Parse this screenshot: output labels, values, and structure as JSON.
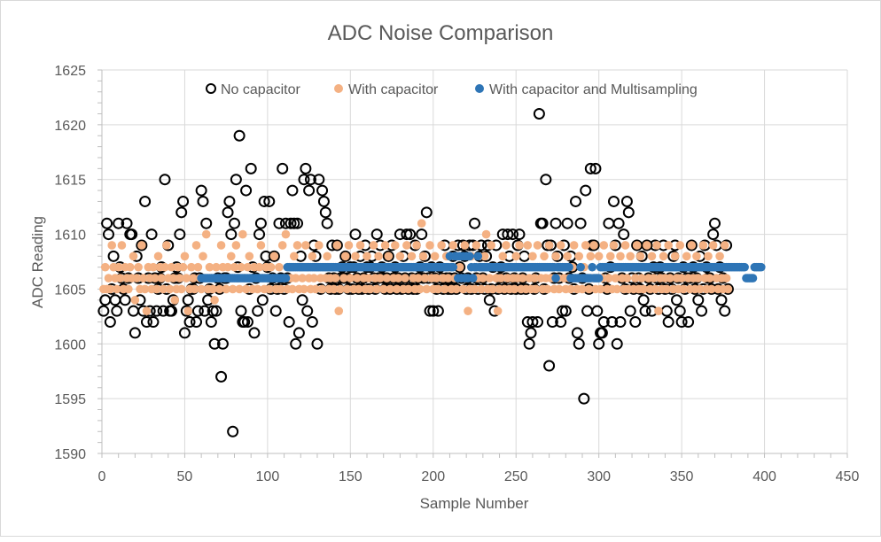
{
  "chart_data": {
    "type": "scatter",
    "title": "ADC Noise Comparison",
    "xlabel": "Sample Number",
    "ylabel": "ADC Reading",
    "xlim": [
      0,
      450
    ],
    "ylim": [
      1590,
      1625
    ],
    "x_ticks": [
      0,
      50,
      100,
      150,
      200,
      250,
      300,
      350,
      400,
      450
    ],
    "y_ticks": [
      1590,
      1595,
      1600,
      1605,
      1610,
      1615,
      1620,
      1625
    ],
    "grid": true,
    "legend_position": "top",
    "series": [
      {
        "name": "No capacitor",
        "marker": "open-circle",
        "color": "#000000",
        "x_start": 1,
        "y": [
          1603,
          1604,
          1611,
          1610,
          1602,
          1605,
          1608,
          1604,
          1603,
          1611,
          1607,
          1606,
          1605,
          1604,
          1611,
          1606,
          1610,
          1610,
          1603,
          1601,
          1608,
          1606,
          1604,
          1609,
          1603,
          1613,
          1602,
          1606,
          1603,
          1610,
          1602,
          1606,
          1603,
          1605,
          1606,
          1607,
          1603,
          1615,
          1605,
          1609,
          1603,
          1603,
          1604,
          1606,
          1607,
          1606,
          1610,
          1612,
          1613,
          1601,
          1603,
          1604,
          1602,
          1605,
          1605,
          1606,
          1602,
          1603,
          1606,
          1614,
          1613,
          1603,
          1611,
          1604,
          1605,
          1602,
          1603,
          1600,
          1603,
          1606,
          1605,
          1597,
          1600,
          1606,
          1606,
          1612,
          1613,
          1610,
          1592,
          1611,
          1615,
          1607,
          1619,
          1603,
          1602,
          1602,
          1614,
          1602,
          1605,
          1616,
          1607,
          1601,
          1606,
          1603,
          1610,
          1611,
          1604,
          1613,
          1608,
          1607,
          1613,
          1605,
          1606,
          1608,
          1603,
          1605,
          1611,
          1606,
          1616,
          1605,
          1611,
          1606,
          1602,
          1611,
          1614,
          1611,
          1600,
          1611,
          1601,
          1608,
          1604,
          1615,
          1616,
          1603,
          1614,
          1615,
          1602,
          1609,
          1608,
          1600,
          1615,
          1605,
          1614,
          1613,
          1612,
          1611,
          1606,
          1605,
          1609,
          1606,
          1605,
          1609,
          1605,
          1606,
          1607,
          1606,
          1608,
          1606,
          1605,
          1607,
          1605,
          1607,
          1610,
          1606,
          1605,
          1608,
          1605,
          1606,
          1609,
          1607,
          1605,
          1607,
          1608,
          1606,
          1605,
          1610,
          1606,
          1609,
          1607,
          1606,
          1605,
          1606,
          1608,
          1605,
          1609,
          1606,
          1607,
          1605,
          1606,
          1610,
          1605,
          1608,
          1606,
          1610,
          1605,
          1610,
          1606,
          1605,
          1609,
          1605,
          1606,
          1607,
          1610,
          1606,
          1608,
          1612,
          1606,
          1603,
          1607,
          1603,
          1606,
          1605,
          1603,
          1607,
          1606,
          1605,
          1609,
          1606,
          1605,
          1606,
          1605,
          1608,
          1606,
          1605,
          1609,
          1607,
          1606,
          1609,
          1608,
          1605,
          1606,
          1609,
          1605,
          1609,
          1611,
          1606,
          1605,
          1608,
          1609,
          1606,
          1605,
          1608,
          1609,
          1604,
          1605,
          1607,
          1603,
          1609,
          1605,
          1606,
          1607,
          1610,
          1605,
          1606,
          1610,
          1608,
          1605,
          1610,
          1606,
          1605,
          1609,
          1610,
          1605,
          1606,
          1608,
          1605,
          1602,
          1600,
          1601,
          1602,
          1605,
          1606,
          1602,
          1621,
          1611,
          1611,
          1605,
          1615,
          1609,
          1598,
          1609,
          1602,
          1606,
          1611,
          1608,
          1606,
          1602,
          1603,
          1609,
          1603,
          1611,
          1606,
          1608,
          1607,
          1605,
          1613,
          1601,
          1600,
          1611,
          1606,
          1595,
          1614,
          1603,
          1605,
          1616,
          1609,
          1609,
          1616,
          1603,
          1600,
          1601,
          1601,
          1602,
          1606,
          1605,
          1611,
          1607,
          1602,
          1613,
          1609,
          1600,
          1611,
          1602,
          1606,
          1610,
          1605,
          1613,
          1612,
          1603,
          1606,
          1605,
          1602,
          1609,
          1606,
          1605,
          1608,
          1604,
          1603,
          1609,
          1606,
          1605,
          1603,
          1607,
          1609,
          1606,
          1605,
          1607,
          1606,
          1609,
          1605,
          1603,
          1602,
          1606,
          1605,
          1608,
          1609,
          1604,
          1606,
          1603,
          1602,
          1607,
          1605,
          1606,
          1602,
          1606,
          1609,
          1607,
          1605,
          1606,
          1604,
          1608,
          1603,
          1605,
          1609,
          1607,
          1606,
          1606,
          1605,
          1610,
          1611,
          1609,
          1605,
          1607,
          1604,
          1606,
          1603,
          1609,
          1605
        ]
      },
      {
        "name": "With capacitor",
        "marker": "filled-circle",
        "color": "#F4B183",
        "x_start": 1,
        "y": [
          1605,
          1607,
          1605,
          1606,
          1605,
          1609,
          1607,
          1606,
          1605,
          1607,
          1606,
          1609,
          1605,
          1607,
          1606,
          1605,
          1607,
          1606,
          1608,
          1604,
          1606,
          1607,
          1605,
          1609,
          1606,
          1605,
          1603,
          1607,
          1606,
          1605,
          1607,
          1606,
          1605,
          1608,
          1607,
          1606,
          1605,
          1607,
          1609,
          1606,
          1605,
          1607,
          1606,
          1604,
          1605,
          1607,
          1606,
          1605,
          1607,
          1608,
          1606,
          1603,
          1605,
          1607,
          1606,
          1605,
          1609,
          1607,
          1606,
          1605,
          1608,
          1606,
          1610,
          1605,
          1607,
          1606,
          1605,
          1604,
          1607,
          1606,
          1605,
          1609,
          1607,
          1606,
          1605,
          1607,
          1606,
          1608,
          1605,
          1607,
          1609,
          1606,
          1605,
          1607,
          1610,
          1606,
          1605,
          1607,
          1608,
          1606,
          1605,
          1607,
          1606,
          1605,
          1607,
          1609,
          1606,
          1605,
          1607,
          1606,
          1605,
          1607,
          1606,
          1608,
          1605,
          1606,
          1607,
          1605,
          1609,
          1606,
          1610,
          1605,
          1607,
          1606,
          1605,
          1608,
          1606,
          1609,
          1605,
          1607,
          1606,
          1605,
          1609,
          1607,
          1606,
          1605,
          1608,
          1606,
          1605,
          1607,
          1609,
          1606,
          1605,
          1607,
          1606,
          1608,
          1605,
          1606,
          1607,
          1605,
          1606,
          1609,
          1603,
          1605,
          1607,
          1606,
          1608,
          1605,
          1609,
          1606,
          1607,
          1605,
          1608,
          1606,
          1605,
          1609,
          1607,
          1606,
          1605,
          1608,
          1606,
          1605,
          1607,
          1609,
          1606,
          1605,
          1608,
          1606,
          1607,
          1605,
          1609,
          1606,
          1608,
          1605,
          1607,
          1606,
          1609,
          1605,
          1606,
          1608,
          1607,
          1605,
          1606,
          1609,
          1605,
          1607,
          1608,
          1606,
          1605,
          1609,
          1606,
          1605,
          1611,
          1608,
          1606,
          1605,
          1607,
          1609,
          1606,
          1605,
          1608,
          1606,
          1605,
          1607,
          1609,
          1606,
          1605,
          1608,
          1606,
          1607,
          1605,
          1609,
          1606,
          1605,
          1608,
          1607,
          1606,
          1605,
          1609,
          1606,
          1603,
          1605,
          1608,
          1606,
          1605,
          1609,
          1606,
          1607,
          1605,
          1606,
          1608,
          1610,
          1605,
          1606,
          1609,
          1605,
          1607,
          1606,
          1603,
          1605,
          1606,
          1608,
          1605,
          1609,
          1606,
          1605,
          1607,
          1606,
          1605,
          1608,
          1606,
          1609,
          1605,
          1606,
          1607,
          1605,
          1609,
          1606,
          1605,
          1608,
          1606,
          1605,
          1609,
          1607,
          1606,
          1605,
          1608,
          1606,
          1605,
          1609,
          1606,
          1607,
          1605,
          1608,
          1606,
          1605,
          1609,
          1607,
          1606,
          1605,
          1608,
          1606,
          1605,
          1607,
          1609,
          1606,
          1605,
          1608,
          1606,
          1605,
          1607,
          1609,
          1606,
          1605,
          1608,
          1606,
          1609,
          1605,
          1606,
          1608,
          1605,
          1606,
          1609,
          1607,
          1605,
          1606,
          1608,
          1605,
          1609,
          1606,
          1605,
          1607,
          1608,
          1606,
          1605,
          1609,
          1606,
          1605,
          1608,
          1607,
          1605,
          1606,
          1609,
          1605,
          1608,
          1606,
          1605,
          1607,
          1609,
          1606,
          1605,
          1608,
          1606,
          1605,
          1609,
          1603,
          1606,
          1605,
          1608,
          1606,
          1605,
          1609,
          1606,
          1607,
          1605,
          1608,
          1606,
          1605,
          1609,
          1606,
          1605,
          1607,
          1608,
          1606,
          1605,
          1609,
          1606,
          1605,
          1608,
          1606,
          1605,
          1607,
          1609,
          1606,
          1605,
          1608,
          1606,
          1605,
          1609,
          1607,
          1606,
          1605,
          1608,
          1606,
          1605,
          1609,
          1606,
          1605
        ]
      },
      {
        "name": "With capacitor and Multisampling",
        "marker": "filled-circle",
        "color": "#2E75B6",
        "x_start": 60,
        "y": [
          1606,
          1606,
          1606,
          1606,
          1606,
          1606,
          1606,
          1606,
          1606,
          1606,
          1606,
          1606,
          1606,
          1606,
          1606,
          1606,
          1606,
          1606,
          1606,
          1606,
          1606,
          1606,
          1606,
          1606,
          1606,
          1606,
          1606,
          1606,
          1606,
          1606,
          1606,
          1606,
          1606,
          1606,
          1606,
          1606,
          1606,
          1606,
          1606,
          1606,
          1606,
          1606,
          1606,
          1606,
          1606,
          1606,
          1606,
          1606,
          1606,
          1606,
          1606,
          1606,
          1607,
          1607,
          1607,
          1607,
          1607,
          1607,
          1607,
          1607,
          1607,
          1607,
          1607,
          1607,
          1607,
          1607,
          1607,
          1607,
          1607,
          1607,
          1607,
          1607,
          1607,
          1607,
          1607,
          1607,
          1607,
          1607,
          1607,
          1607,
          1607,
          1607,
          1607,
          1607,
          1607,
          1607,
          1607,
          1607,
          1607,
          1607,
          1607,
          1607,
          1607,
          1607,
          1607,
          1607,
          1607,
          1607,
          1607,
          1607,
          1607,
          1607,
          1607,
          1607,
          1607,
          1607,
          1607,
          1607,
          1607,
          1607,
          1607,
          1607,
          1607,
          1607,
          1607,
          1607,
          1607,
          1607,
          1607,
          1607,
          1607,
          1607,
          1607,
          1607,
          1607,
          1607,
          1607,
          1607,
          1607,
          1607,
          1607,
          1607,
          1607,
          1607,
          1607,
          1607,
          1607,
          1607,
          1607,
          1607,
          1607,
          1607,
          1607,
          1607,
          1607,
          1607,
          1607,
          1607,
          1607,
          1607,
          1608,
          1607,
          1607,
          1608,
          1608,
          1606,
          1608,
          1606,
          1608,
          1606,
          1608,
          1606,
          1608,
          1607,
          1606,
          1607,
          1607,
          1608,
          1607,
          1607,
          1607,
          1607,
          1607,
          1607,
          1607,
          1607,
          1607,
          1607,
          1607,
          1607,
          1607,
          1607,
          1607,
          1607,
          1607,
          1607,
          1607,
          1607,
          1607,
          1607,
          1607,
          1607,
          1607,
          1607,
          1607,
          1607,
          1607,
          1607,
          1607,
          1607,
          1607,
          1607,
          1607,
          1607,
          1607,
          1607,
          1607,
          1607,
          1607,
          1607,
          1607,
          1607,
          1607,
          1607,
          1606,
          1607,
          1607,
          1607,
          1607,
          1607,
          1607,
          1607,
          1607,
          1606,
          1606,
          1606,
          1606,
          1606,
          1606,
          1607,
          1606,
          1606,
          1606,
          1606,
          1606,
          1606,
          1607,
          1606,
          1606,
          1606,
          1606,
          1607,
          1607,
          1607,
          1607,
          1607,
          1607,
          1607,
          1607,
          1607,
          1607,
          1607,
          1607,
          1607,
          1607,
          1607,
          1607,
          1607,
          1607,
          1607,
          1607,
          1607,
          1607,
          1607,
          1607,
          1607,
          1607,
          1607,
          1607,
          1607,
          1607,
          1607,
          1607,
          1607,
          1607,
          1607,
          1607,
          1607,
          1607,
          1607,
          1607,
          1607,
          1607,
          1607,
          1607,
          1607,
          1607,
          1607,
          1607,
          1607,
          1607,
          1607,
          1607,
          1607,
          1607,
          1607,
          1607,
          1607,
          1607,
          1607,
          1607,
          1607,
          1607,
          1607,
          1607,
          1607,
          1607,
          1607,
          1607,
          1607,
          1607,
          1607,
          1607,
          1607,
          1607,
          1607,
          1607,
          1607,
          1607,
          1607,
          1607,
          1607,
          1607,
          1607,
          1607,
          1607,
          1607,
          1607,
          1607,
          1606,
          1606,
          1606,
          1606,
          1606,
          1607,
          1607,
          1607,
          1607,
          1607
        ]
      }
    ]
  }
}
